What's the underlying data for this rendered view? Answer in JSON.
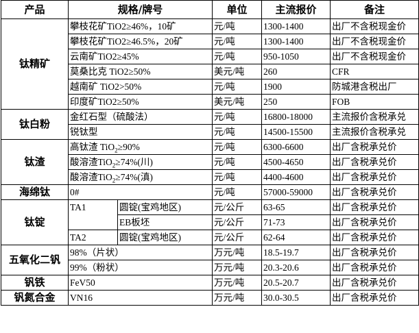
{
  "headers": {
    "product": "产品",
    "spec": "规格/牌号",
    "unit": "单位",
    "price": "主流报价",
    "note": "备注"
  },
  "groups": [
    {
      "product": "钛精矿",
      "rows": [
        {
          "spec": [
            "攀枝花矿TiO2≥46%，10矿"
          ],
          "unit": "元/吨",
          "price": "1300-1400",
          "note": "出厂不含税现金价"
        },
        {
          "spec": [
            "攀枝花矿TiO2≥46.5%，20矿"
          ],
          "unit": "元/吨",
          "price": "1300-1400",
          "note": "出厂不含税现金价"
        },
        {
          "spec": [
            "云南矿TiO2≥45%"
          ],
          "unit": "元/吨",
          "price": "950-1050",
          "note": "出厂不含税现金价"
        },
        {
          "spec": [
            "莫桑比克 TiO2≥50%"
          ],
          "unit": "美元/吨",
          "price": "260",
          "note": "CFR"
        },
        {
          "spec": [
            "越南矿 TiO2>50%"
          ],
          "unit": "元/吨",
          "price": "1900",
          "note": "防城港含税出厂"
        },
        {
          "spec": [
            "印度矿TiO2≥50%"
          ],
          "unit": "美元/吨",
          "price": "250",
          "note": "FOB"
        }
      ]
    },
    {
      "product": "钛白粉",
      "rows": [
        {
          "spec": [
            "金红石型（硫酸法）"
          ],
          "unit": "元/吨",
          "price": "16800-18000",
          "note": "主流报价含税承兑"
        },
        {
          "spec": [
            "锐钛型"
          ],
          "unit": "元/吨",
          "price": "14500-15500",
          "note": "主流报价含税承兑"
        }
      ]
    },
    {
      "product": "钛渣",
      "rows": [
        {
          "spec": [
            "高钛渣 TiO",
            "2",
            "≥90%"
          ],
          "unit": "元/吨",
          "price": "6300-6600",
          "note": "出厂含税承兑价"
        },
        {
          "spec": [
            "酸溶渣TiO",
            "2",
            "≥74%(川)"
          ],
          "unit": "元/吨",
          "price": "4500-4650",
          "note": "出厂含税承兑价"
        },
        {
          "spec": [
            "酸溶渣TiO",
            "2",
            "≥74%(滇)"
          ],
          "unit": "元/吨",
          "price": "4400-4600",
          "note": "出厂含税承兑价"
        }
      ]
    },
    {
      "product": "海绵钛",
      "rows": [
        {
          "spec": [
            "0#"
          ],
          "unit": "元/吨",
          "price": "57000-59000",
          "note": "出厂含税承兑价"
        }
      ]
    },
    {
      "product": "钛锭",
      "rows": [
        {
          "grade": "TA1",
          "form": "圆锭(宝鸡地区)",
          "unit": "元/公斤",
          "price": "63-65",
          "note": "出厂含税承兑价"
        },
        {
          "form": "EB板坯",
          "unit": "元/公斤",
          "price": "71-73",
          "note": "出厂含税承兑价"
        },
        {
          "grade": "TA2",
          "form": "圆锭(宝鸡地区)",
          "unit": "元/公斤",
          "price": "62-64",
          "note": "出厂含税承兑价"
        }
      ]
    },
    {
      "product": "五氧化二钒",
      "rows": [
        {
          "spec": [
            "98%（片状）"
          ],
          "unit": "万元/吨",
          "price": "18.5-19.7",
          "note": "出厂含税承兑价"
        },
        {
          "spec": [
            "99%（粉状）"
          ],
          "unit": "万元/吨",
          "price": "20.3-20.6",
          "note": "出厂含税承兑价"
        }
      ]
    },
    {
      "product": "钒铁",
      "rows": [
        {
          "spec": [
            "FeV50"
          ],
          "unit": "万元/吨",
          "price": "20.5-20.7",
          "note": "出厂含税承兑价"
        }
      ]
    },
    {
      "product": "钒氮合金",
      "rows": [
        {
          "spec": [
            "VN16"
          ],
          "unit": "万元/吨",
          "price": "30.0-30.5",
          "note": "出厂含税承兑价"
        }
      ]
    }
  ]
}
